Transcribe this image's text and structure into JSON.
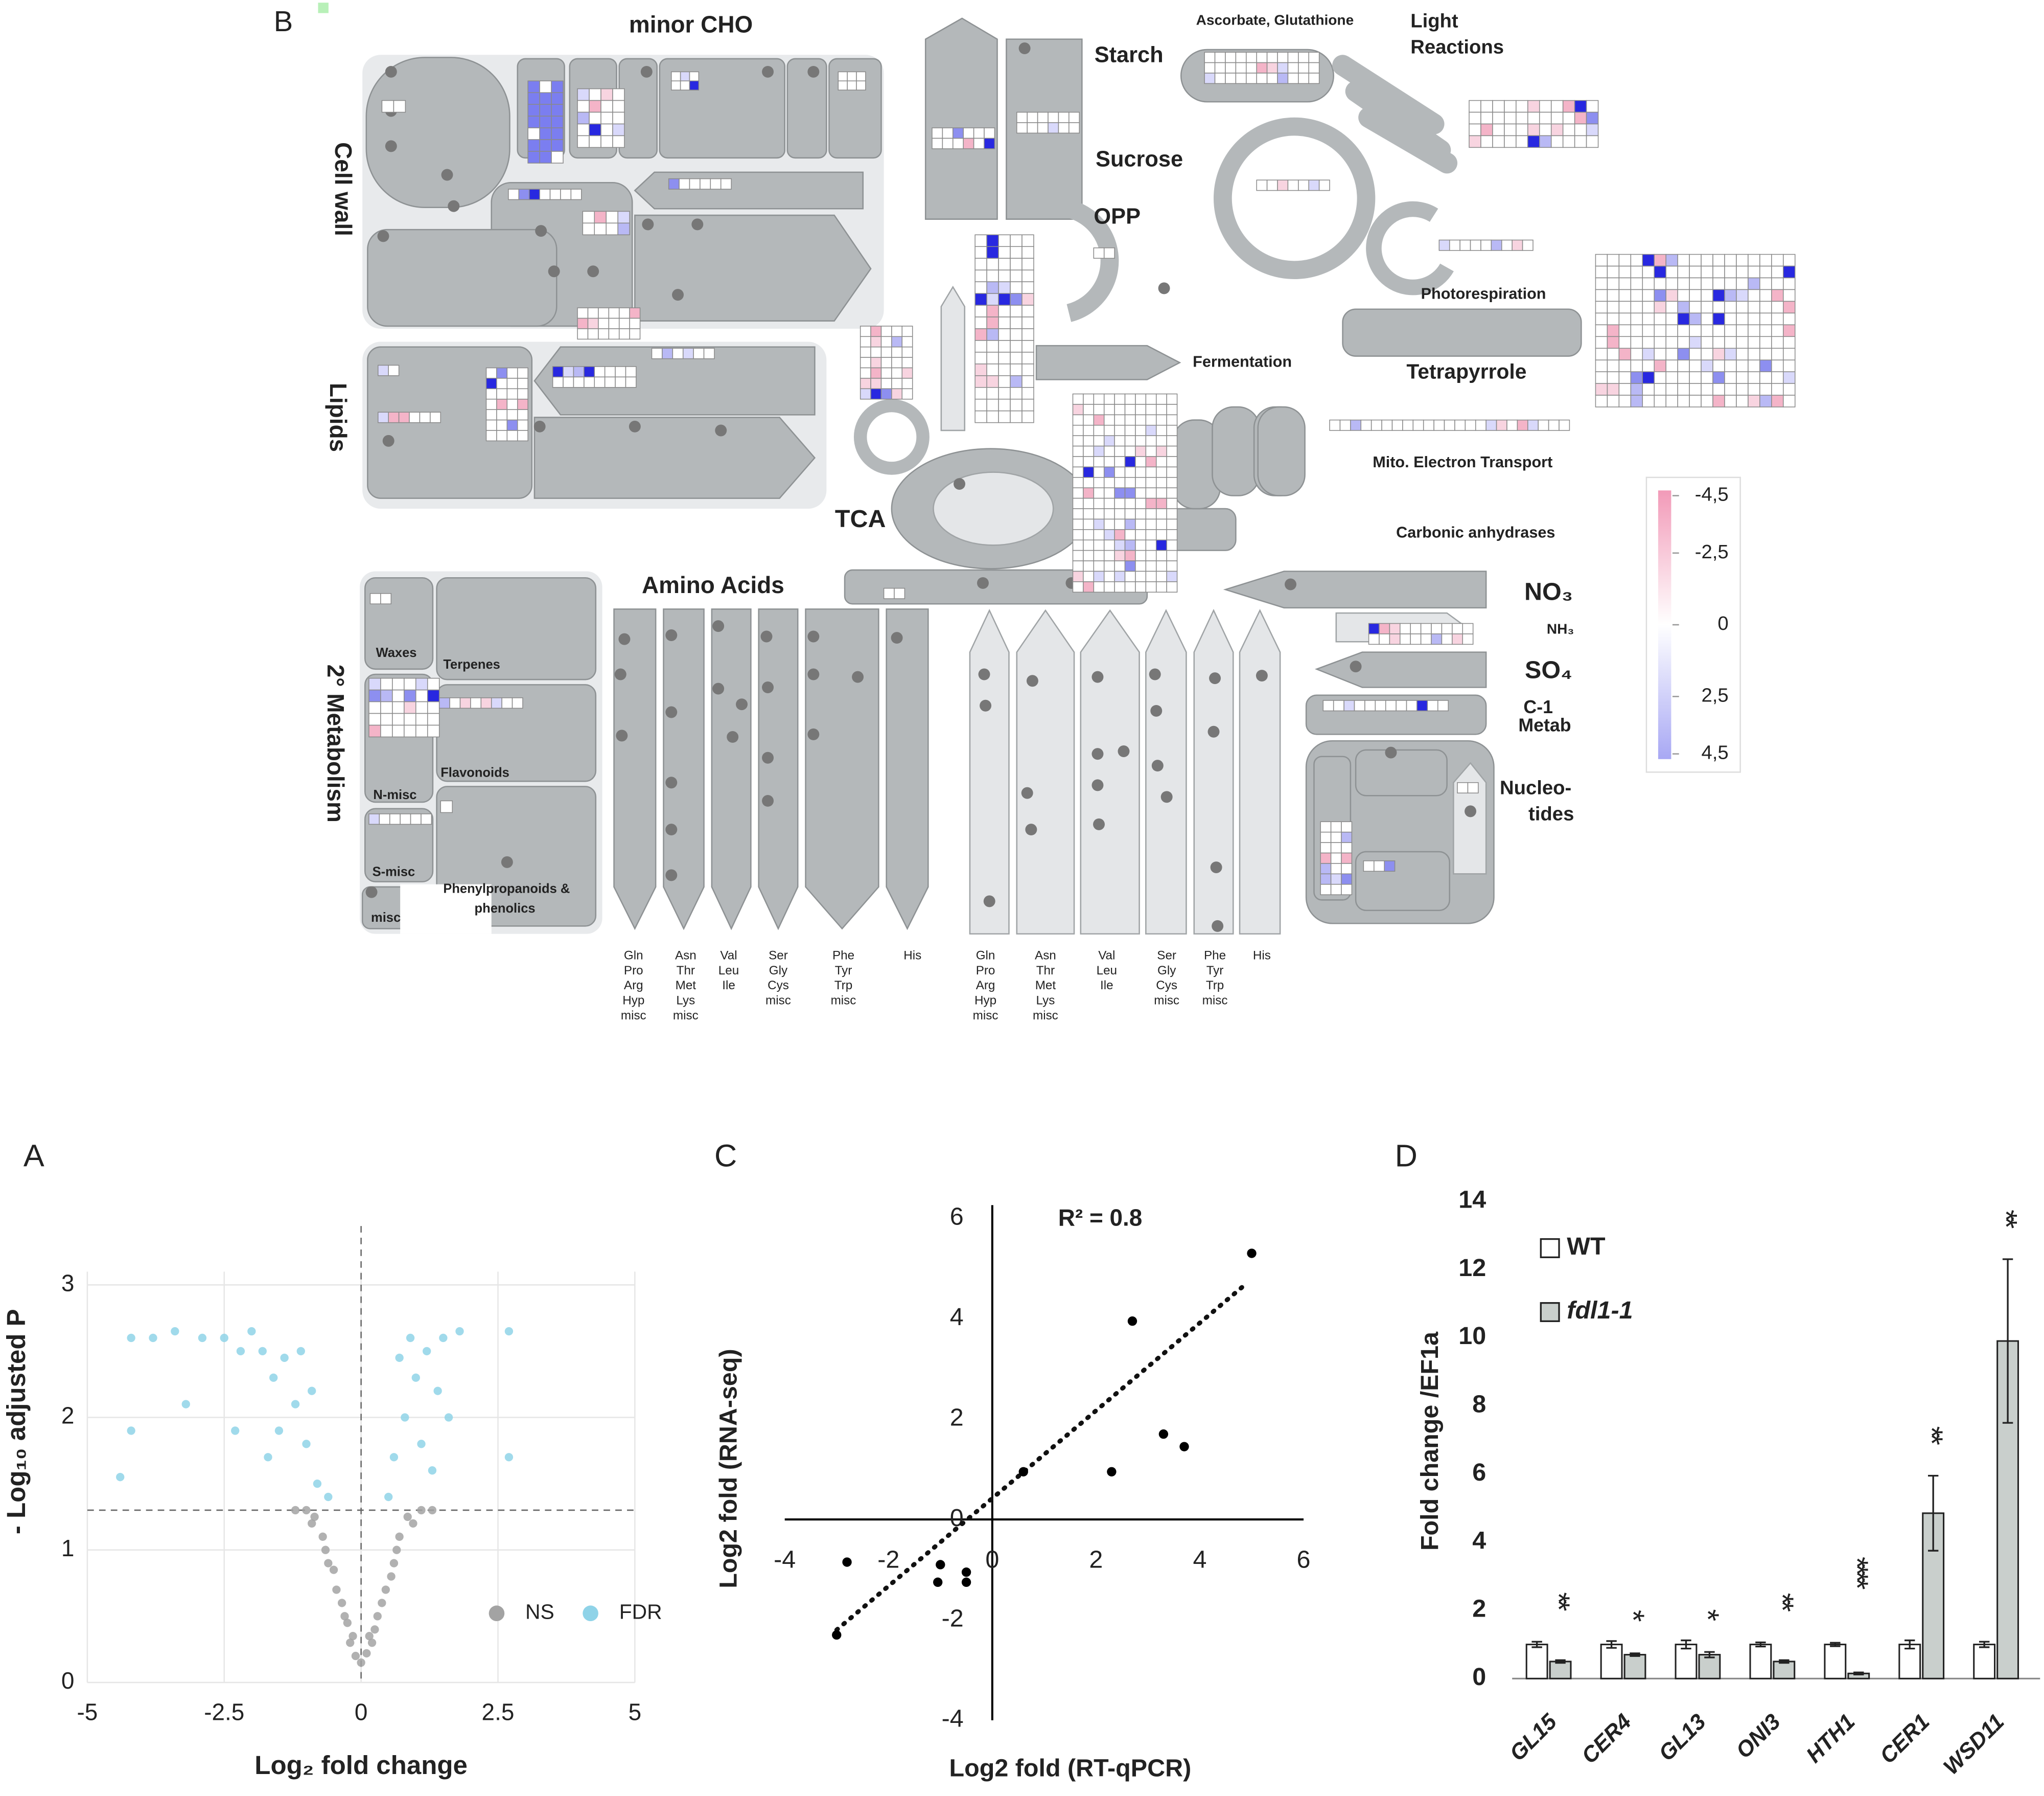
{
  "diagram": {
    "panel_label": "B",
    "labels": {
      "minor_cho": "minor CHO",
      "cell_wall": "Cell wall",
      "lipids": "Lipids",
      "secondary": "2° Metabolism",
      "starch": "Starch",
      "sucrose": "Sucrose",
      "opp": "OPP",
      "ascorbate": "Ascorbate, Glutathione",
      "light": "Light",
      "reactions": "Reactions",
      "photorespiration": "Photorespiration",
      "fermentation": "Fermentation",
      "tetrapyrrole": "Tetrapyrrole",
      "mito": "Mito. Electron Transport",
      "tca": "TCA",
      "carbonic": "Carbonic anhydrases",
      "amino": "Amino Acids",
      "no3": "NO₃",
      "nh3": "NH₃",
      "so4": "SO₄",
      "c1": "C-1",
      "metab": "Metab",
      "nucleo": "Nucleo-",
      "tides": "tides",
      "waxes": "Waxes",
      "terpenes": "Terpenes",
      "nmisc": "N-misc",
      "flavonoids": "Flavonoids",
      "smisc": "S-misc",
      "phenyl": "Phenylpropanoids &",
      "phenolics": "phenolics",
      "misc": "misc"
    },
    "amino_groups": [
      [
        "Gln",
        "Pro",
        "Arg",
        "Hyp",
        "misc"
      ],
      [
        "Asn",
        "Thr",
        "Met",
        "Lys",
        "misc"
      ],
      [
        "Val",
        "Leu",
        "Ile"
      ],
      [
        "Ser",
        "Gly",
        "Cys",
        "misc"
      ],
      [
        "Phe",
        "Tyr",
        "Trp",
        "misc"
      ],
      [
        "His"
      ]
    ],
    "amino_groups_right": [
      [
        "Gln",
        "Pro",
        "Arg",
        "Hyp",
        "misc"
      ],
      [
        "Asn",
        "Thr",
        "Met",
        "Lys",
        "misc"
      ],
      [
        "Val",
        "Leu",
        "Ile"
      ],
      [
        "Ser",
        "Gly",
        "Cys",
        "misc"
      ],
      [
        "Phe",
        "Tyr",
        "Trp",
        "misc"
      ],
      [
        "His"
      ]
    ],
    "scale_ticks": [
      {
        "value": -4.5,
        "label": "-4,5"
      },
      {
        "value": -2.5,
        "label": "-2,5"
      },
      0,
      {
        "value": 2.5,
        "label": "2,5"
      },
      {
        "value": 4.5,
        "label": "4,5"
      }
    ]
  },
  "chart_data": [
    {
      "type": "scatter",
      "panel_label": "A",
      "xlabel": "Log₂ fold change",
      "ylabel": "- Log₁₀ adjusted P",
      "xlim": [
        -5,
        5
      ],
      "ylim": [
        0,
        3.1
      ],
      "xticks": [
        -5,
        -2.5,
        0,
        2.5,
        5
      ],
      "yticks": [
        0,
        1,
        2,
        3
      ],
      "grid": true,
      "legend": "lower right",
      "thresholds": {
        "x": 0,
        "y": 1.3
      },
      "series": [
        {
          "name": "NS",
          "color": "#a3a3a3",
          "x": [
            0,
            -0.2,
            0.2,
            -0.3,
            0.3,
            -0.45,
            0.45,
            -0.6,
            0.6,
            -0.7,
            0.7,
            -0.85,
            0.85,
            -1,
            1.1,
            -0.1,
            0.1,
            -0.5,
            0.55,
            -0.35,
            0.38,
            -0.9,
            0.95,
            -1.2,
            1.3,
            -0.25,
            0.25,
            -0.65,
            0.65,
            -0.15,
            0.15
          ],
          "values": [
            0.15,
            0.3,
            0.3,
            0.5,
            0.5,
            0.7,
            0.7,
            0.9,
            0.9,
            1.1,
            1.1,
            1.25,
            1.25,
            1.3,
            1.3,
            0.2,
            0.22,
            0.85,
            0.8,
            0.6,
            0.6,
            1.2,
            1.2,
            1.3,
            1.3,
            0.45,
            0.4,
            1,
            1,
            0.35,
            0.35
          ]
        },
        {
          "name": "FDR",
          "color": "#8fd3e8",
          "x": [
            -4.2,
            -3.8,
            -3.4,
            -4.4,
            -4.2,
            -3.2,
            -2.9,
            -2.5,
            -2.2,
            -2,
            -1.8,
            -1.6,
            -1.4,
            -1.2,
            -1,
            -0.8,
            -0.6,
            -1.5,
            -1.1,
            -0.9,
            -1.7,
            -2.3,
            0.5,
            0.6,
            0.8,
            1,
            1.2,
            0.9,
            1.4,
            1.6,
            1.8,
            1.3,
            0.7,
            2.7,
            2.7,
            1.5,
            1.1
          ],
          "values": [
            2.6,
            2.6,
            2.65,
            1.55,
            1.9,
            2.1,
            2.6,
            2.6,
            2.5,
            2.65,
            2.5,
            2.3,
            2.45,
            2.1,
            1.8,
            1.5,
            1.4,
            1.9,
            2.5,
            2.2,
            1.7,
            1.9,
            1.4,
            1.7,
            2,
            2.3,
            2.5,
            2.6,
            2.2,
            2,
            2.65,
            1.6,
            2.45,
            2.65,
            1.7,
            2.6,
            1.8
          ]
        }
      ]
    },
    {
      "type": "scatter",
      "panel_label": "C",
      "xlabel": "Log2 fold (RT-qPCR)",
      "ylabel": "Log2 fold (RNA-seq)",
      "annotation": "R² = 0.8",
      "xlim": [
        -4,
        6
      ],
      "ylim": [
        -4,
        6
      ],
      "xticks": [
        -4,
        -2,
        0,
        2,
        4,
        6
      ],
      "yticks": [
        -4,
        -2,
        0,
        2,
        4,
        6
      ],
      "axes_cross_at_zero": true,
      "series": [
        {
          "color": "#000000",
          "x": [
            5,
            2.7,
            3.3,
            3.7,
            2.3,
            0.6,
            -2.8,
            -1,
            -1.05,
            -0.5,
            -0.5,
            -3
          ],
          "values": [
            5.3,
            3.95,
            1.7,
            1.45,
            0.95,
            0.95,
            -0.85,
            -0.9,
            -1.25,
            -1.05,
            -1.25,
            -2.3
          ]
        }
      ],
      "trendline": {
        "x": [
          -3,
          4.9
        ],
        "values": [
          -2.2,
          4.7
        ]
      }
    },
    {
      "type": "bar",
      "panel_label": "D",
      "ylabel": "Fold change /EF1a",
      "ylim": [
        0,
        14
      ],
      "yticks": [
        0,
        2,
        4,
        6,
        8,
        10,
        12,
        14
      ],
      "legend": "upper left",
      "categories": [
        "GL15",
        "CER4",
        "GL13",
        "ONI3",
        "HTH1",
        "CER1",
        "WSD11"
      ],
      "series": [
        {
          "name": "WT",
          "color": "#ffffff",
          "values": [
            1,
            1,
            1,
            1,
            1,
            1,
            1
          ],
          "errors": [
            0.08,
            0.1,
            0.12,
            0.06,
            0.05,
            0.12,
            0.08
          ]
        },
        {
          "name": "fdl1-1",
          "color": "#c9cfcc",
          "values": [
            0.5,
            0.7,
            0.7,
            0.5,
            0.15,
            4.85,
            9.9
          ],
          "errors": [
            0.04,
            0.04,
            0.08,
            0.04,
            0.03,
            1.1,
            2.4
          ]
        }
      ],
      "significance": [
        "**",
        "*",
        "*",
        "**",
        "****",
        "**",
        "**"
      ]
    }
  ]
}
